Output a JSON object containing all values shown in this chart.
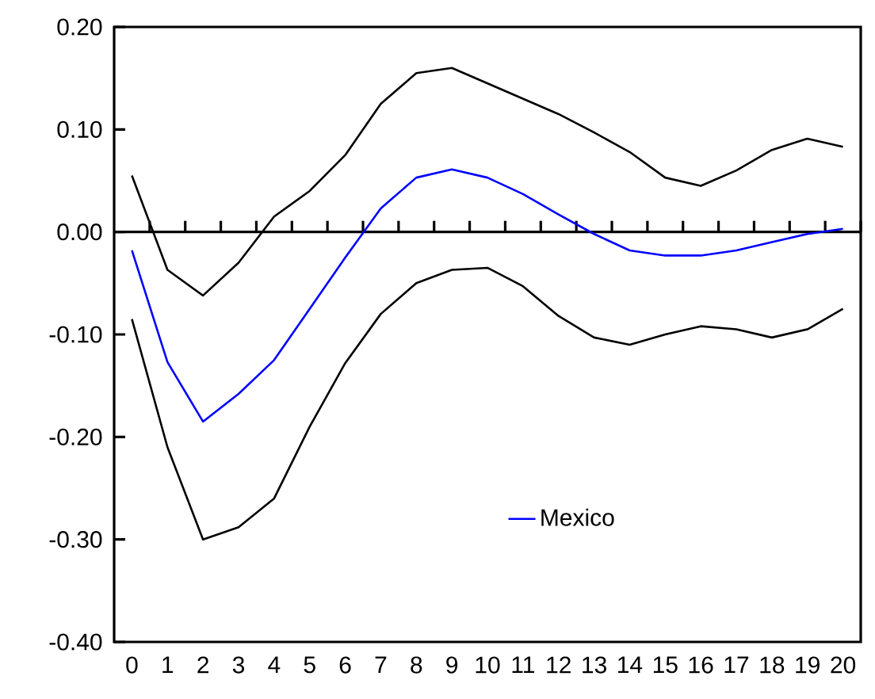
{
  "chart_data": {
    "type": "line",
    "categories": [
      "0",
      "1",
      "2",
      "3",
      "4",
      "5",
      "6",
      "7",
      "8",
      "9",
      "10",
      "11",
      "12",
      "13",
      "14",
      "15",
      "16",
      "17",
      "18",
      "19",
      "20"
    ],
    "series": [
      {
        "color": "#000000",
        "values": [
          0.055,
          -0.037,
          -0.062,
          -0.03,
          0.015,
          0.04,
          0.075,
          0.125,
          0.155,
          0.16,
          0.145,
          0.13,
          0.115,
          0.097,
          0.078,
          0.053,
          0.045,
          0.06,
          0.08,
          0.091,
          0.083
        ]
      },
      {
        "name": "Mexico",
        "color": "#0000ff",
        "values": [
          -0.018,
          -0.127,
          -0.185,
          -0.158,
          -0.125,
          -0.075,
          -0.025,
          0.023,
          0.053,
          0.061,
          0.053,
          0.037,
          0.017,
          -0.002,
          -0.018,
          -0.023,
          -0.023,
          -0.018,
          -0.01,
          -0.002,
          0.003
        ]
      },
      {
        "color": "#000000",
        "values": [
          -0.085,
          -0.21,
          -0.3,
          -0.288,
          -0.26,
          -0.19,
          -0.128,
          -0.08,
          -0.05,
          -0.037,
          -0.035,
          -0.053,
          -0.082,
          -0.103,
          -0.11,
          -0.1,
          -0.092,
          -0.095,
          -0.103,
          -0.095,
          -0.075
        ]
      }
    ],
    "ylim": [
      -0.4,
      0.2
    ],
    "yticks": [
      {
        "value": -0.4,
        "label": "-0.40"
      },
      {
        "value": -0.3,
        "label": "-0.30"
      },
      {
        "value": -0.2,
        "label": "-0.20"
      },
      {
        "value": -0.1,
        "label": "-0.10"
      },
      {
        "value": 0,
        "label": "0.00"
      },
      {
        "value": 0.1,
        "label": "0.10"
      },
      {
        "value": 0.2,
        "label": "0.20"
      }
    ],
    "ref_lines": [
      {
        "axis": "y",
        "value": 0,
        "color": "#000000"
      }
    ],
    "legend": "bottom",
    "grid": false,
    "marker": "none",
    "line_style": "solid"
  }
}
